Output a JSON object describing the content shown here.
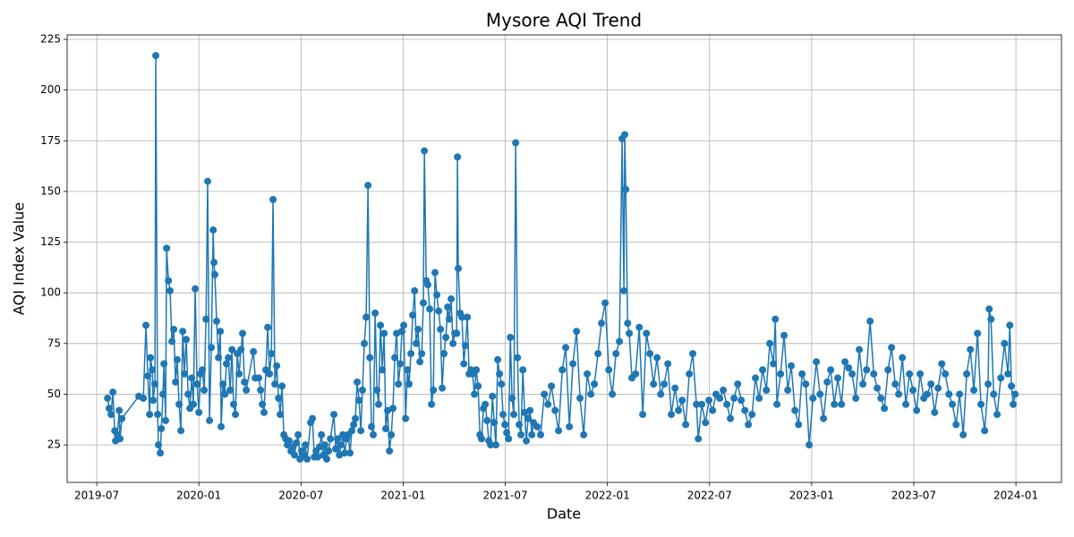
{
  "chart_data": {
    "type": "line",
    "title": "Mysore AQI Trend",
    "x_label": "Date",
    "y_label": "AQI Index Value",
    "color": "#1f77b4",
    "grid": true,
    "xlim": [
      2019.355,
      2024.223
    ],
    "ylim": [
      6.5,
      227.2
    ],
    "xticks": [
      {
        "value": 2019.5,
        "label": "2019-07"
      },
      {
        "value": 2020.0,
        "label": "2020-01"
      },
      {
        "value": 2020.5,
        "label": "2020-07"
      },
      {
        "value": 2021.0,
        "label": "2021-01"
      },
      {
        "value": 2021.5,
        "label": "2021-07"
      },
      {
        "value": 2022.0,
        "label": "2022-01"
      },
      {
        "value": 2022.5,
        "label": "2022-07"
      },
      {
        "value": 2023.0,
        "label": "2023-01"
      },
      {
        "value": 2023.5,
        "label": "2023-07"
      },
      {
        "value": 2024.0,
        "label": "2024-01"
      }
    ],
    "yticks": [
      25,
      50,
      75,
      100,
      125,
      150,
      175,
      200,
      225
    ],
    "x": [
      2019.553,
      2019.561,
      2019.57,
      2019.579,
      2019.588,
      2019.592,
      2019.601,
      2019.61,
      2019.614,
      2019.623,
      2019.706,
      2019.728,
      2019.741,
      2019.75,
      2019.759,
      2019.763,
      2019.772,
      2019.776,
      2019.785,
      2019.789,
      2019.798,
      2019.802,
      2019.811,
      2019.816,
      2019.824,
      2019.829,
      2019.837,
      2019.842,
      2019.851,
      2019.859,
      2019.868,
      2019.877,
      2019.886,
      2019.894,
      2019.903,
      2019.912,
      2019.921,
      2019.929,
      2019.938,
      2019.947,
      2019.956,
      2019.965,
      2019.973,
      2019.982,
      2019.991,
      2020.0,
      2020.008,
      2020.017,
      2020.026,
      2020.035,
      2020.043,
      2020.052,
      2020.061,
      2020.07,
      2020.074,
      2020.078,
      2020.087,
      2020.096,
      2020.105,
      2020.109,
      2020.118,
      2020.127,
      2020.135,
      2020.144,
      2020.153,
      2020.162,
      2020.17,
      2020.179,
      2020.188,
      2020.197,
      2020.206,
      2020.214,
      2020.223,
      2020.232,
      2020.267,
      2020.276,
      2020.293,
      2020.302,
      2020.311,
      2020.319,
      2020.328,
      2020.337,
      2020.346,
      2020.355,
      2020.363,
      2020.372,
      2020.381,
      2020.39,
      2020.398,
      2020.407,
      2020.416,
      2020.425,
      2020.433,
      2020.442,
      2020.451,
      2020.46,
      2020.468,
      2020.477,
      2020.486,
      2020.495,
      2020.503,
      2020.512,
      2020.521,
      2020.53,
      2020.547,
      2020.556,
      2020.565,
      2020.574,
      2020.582,
      2020.591,
      2020.6,
      2020.609,
      2020.617,
      2020.626,
      2020.635,
      2020.644,
      2020.661,
      2020.67,
      2020.679,
      2020.688,
      2020.696,
      2020.705,
      2020.714,
      2020.723,
      2020.731,
      2020.74,
      2020.749,
      2020.758,
      2020.766,
      2020.775,
      2020.784,
      2020.793,
      2020.801,
      2020.81,
      2020.819,
      2020.828,
      2020.837,
      2020.845,
      2020.854,
      2020.863,
      2020.872,
      2020.88,
      2020.889,
      2020.898,
      2020.907,
      2020.915,
      2020.924,
      2020.933,
      2020.942,
      2020.95,
      2020.959,
      2020.968,
      2020.977,
      2020.986,
      2020.994,
      2021.003,
      2021.012,
      2021.021,
      2021.029,
      2021.038,
      2021.047,
      2021.056,
      2021.064,
      2021.073,
      2021.082,
      2021.091,
      2021.099,
      2021.104,
      2021.113,
      2021.121,
      2021.13,
      2021.139,
      2021.148,
      2021.156,
      2021.165,
      2021.174,
      2021.183,
      2021.191,
      2021.2,
      2021.209,
      2021.218,
      2021.226,
      2021.235,
      2021.244,
      2021.253,
      2021.262,
      2021.266,
      2021.27,
      2021.279,
      2021.288,
      2021.297,
      2021.305,
      2021.314,
      2021.323,
      2021.332,
      2021.34,
      2021.349,
      2021.358,
      2021.367,
      2021.376,
      2021.384,
      2021.393,
      2021.402,
      2021.411,
      2021.419,
      2021.428,
      2021.437,
      2021.446,
      2021.454,
      2021.463,
      2021.472,
      2021.481,
      2021.489,
      2021.498,
      2021.507,
      2021.516,
      2021.525,
      2021.533,
      2021.542,
      2021.551,
      2021.56,
      2021.568,
      2021.577,
      2021.586,
      2021.595,
      2021.603,
      2021.612,
      2021.621,
      2021.63,
      2021.638,
      2021.656,
      2021.673,
      2021.691,
      2021.709,
      2021.726,
      2021.744,
      2021.761,
      2021.779,
      2021.796,
      2021.814,
      2021.831,
      2021.849,
      2021.866,
      2021.884,
      2021.901,
      2021.919,
      2021.936,
      2021.954,
      2021.971,
      2021.989,
      2022.007,
      2022.024,
      2022.042,
      2022.059,
      2022.072,
      2022.081,
      2022.085,
      2022.09,
      2022.099,
      2022.107,
      2022.12,
      2022.138,
      2022.156,
      2022.173,
      2022.191,
      2022.208,
      2022.226,
      2022.243,
      2022.261,
      2022.278,
      2022.296,
      2022.313,
      2022.331,
      2022.348,
      2022.366,
      2022.383,
      2022.401,
      2022.418,
      2022.436,
      2022.445,
      2022.462,
      2022.48,
      2022.497,
      2022.515,
      2022.532,
      2022.55,
      2022.567,
      2022.585,
      2022.602,
      2022.62,
      2022.638,
      2022.655,
      2022.673,
      2022.69,
      2022.708,
      2022.725,
      2022.743,
      2022.76,
      2022.778,
      2022.795,
      2022.813,
      2022.822,
      2022.83,
      2022.848,
      2022.865,
      2022.883,
      2022.9,
      2022.918,
      2022.936,
      2022.953,
      2022.971,
      2022.988,
      2023.006,
      2023.023,
      2023.041,
      2023.058,
      2023.076,
      2023.093,
      2023.111,
      2023.128,
      2023.146,
      2023.163,
      2023.181,
      2023.198,
      2023.216,
      2023.233,
      2023.251,
      2023.269,
      2023.286,
      2023.304,
      2023.321,
      2023.339,
      2023.356,
      2023.374,
      2023.391,
      2023.409,
      2023.426,
      2023.444,
      2023.461,
      2023.479,
      2023.496,
      2023.514,
      2023.531,
      2023.549,
      2023.566,
      2023.584,
      2023.602,
      2023.619,
      2023.637,
      2023.654,
      2023.672,
      2023.689,
      2023.707,
      2023.724,
      2023.742,
      2023.759,
      2023.777,
      2023.794,
      2023.812,
      2023.829,
      2023.847,
      2023.864,
      2023.869,
      2023.878,
      2023.891,
      2023.908,
      2023.926,
      2023.944,
      2023.961,
      2023.97,
      2023.978,
      2023.987,
      2023.996
    ],
    "values": [
      48,
      43,
      40,
      51,
      32,
      27,
      30,
      42,
      28,
      38,
      49,
      48,
      84,
      59,
      40,
      68,
      62,
      47,
      55,
      217,
      40,
      25,
      21,
      33,
      50,
      65,
      37,
      122,
      106,
      101,
      76,
      82,
      56,
      67,
      45,
      32,
      81,
      60,
      77,
      50,
      43,
      58,
      45,
      102,
      55,
      41,
      60,
      62,
      52,
      87,
      155,
      37,
      73,
      131,
      115,
      109,
      86,
      68,
      81,
      34,
      55,
      50,
      65,
      68,
      52,
      72,
      45,
      40,
      70,
      60,
      72,
      80,
      56,
      52,
      71,
      58,
      58,
      52,
      45,
      41,
      62,
      83,
      60,
      70,
      146,
      55,
      64,
      48,
      40,
      54,
      30,
      28,
      25,
      27,
      22,
      24,
      20,
      26,
      30,
      18,
      22,
      20,
      25,
      18,
      36,
      38,
      19,
      22,
      19,
      24,
      30,
      20,
      25,
      18,
      22,
      28,
      40,
      23,
      28,
      20,
      25,
      30,
      21,
      28,
      30,
      21,
      32,
      35,
      38,
      56,
      47,
      32,
      52,
      75,
      88,
      153,
      68,
      34,
      30,
      90,
      52,
      45,
      84,
      62,
      80,
      33,
      42,
      22,
      30,
      43,
      68,
      80,
      55,
      65,
      81,
      84,
      38,
      62,
      55,
      70,
      89,
      101,
      75,
      82,
      66,
      70,
      95,
      170,
      106,
      104,
      92,
      45,
      52,
      110,
      99,
      91,
      82,
      53,
      70,
      78,
      93,
      87,
      97,
      75,
      80,
      80,
      167,
      112,
      90,
      88,
      65,
      74,
      88,
      60,
      62,
      60,
      50,
      62,
      54,
      30,
      28,
      43,
      45,
      37,
      27,
      25,
      49,
      36,
      25,
      67,
      60,
      55,
      40,
      35,
      31,
      28,
      78,
      48,
      40,
      174,
      68,
      35,
      30,
      62,
      41,
      27,
      38,
      42,
      30,
      36,
      34,
      30,
      50,
      45,
      54,
      42,
      32,
      62,
      73,
      34,
      65,
      81,
      48,
      30,
      60,
      50,
      55,
      70,
      85,
      95,
      62,
      50,
      70,
      76,
      176,
      101,
      178,
      151,
      85,
      80,
      58,
      60,
      83,
      40,
      80,
      70,
      55,
      68,
      50,
      55,
      65,
      40,
      53,
      42,
      47,
      35,
      60,
      70,
      45,
      28,
      45,
      36,
      47,
      42,
      50,
      48,
      52,
      45,
      38,
      48,
      55,
      47,
      42,
      35,
      40,
      58,
      48,
      62,
      52,
      75,
      65,
      87,
      45,
      60,
      79,
      52,
      64,
      42,
      35,
      60,
      55,
      25,
      48,
      66,
      50,
      38,
      56,
      62,
      45,
      58,
      45,
      66,
      63,
      60,
      48,
      72,
      55,
      62,
      86,
      60,
      53,
      48,
      43,
      62,
      73,
      55,
      50,
      68,
      45,
      60,
      52,
      42,
      60,
      48,
      50,
      55,
      41,
      53,
      65,
      60,
      50,
      45,
      35,
      50,
      30,
      60,
      72,
      52,
      80,
      45,
      32,
      55,
      92,
      87,
      50,
      40,
      58,
      75,
      60,
      84,
      54,
      45,
      50
    ]
  }
}
